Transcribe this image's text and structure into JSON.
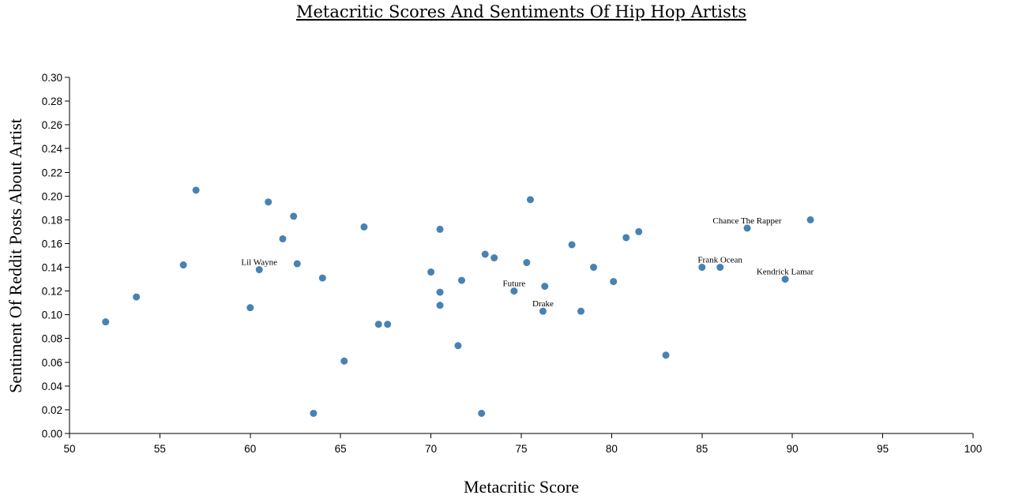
{
  "chart_data": {
    "type": "scatter",
    "title": "Metacritic Scores And Sentiments Of Hip Hop Artists",
    "xlabel": "Metacritic Score",
    "ylabel": "Sentiment Of Reddit Posts About Artist",
    "xlim": [
      50,
      100
    ],
    "ylim": [
      0.0,
      0.3
    ],
    "xticks": [
      "50",
      "55",
      "60",
      "65",
      "70",
      "75",
      "80",
      "85",
      "90",
      "95",
      "100"
    ],
    "yticks": [
      "0.00",
      "0.02",
      "0.04",
      "0.06",
      "0.08",
      "0.10",
      "0.12",
      "0.14",
      "0.16",
      "0.18",
      "0.20",
      "0.22",
      "0.24",
      "0.26",
      "0.28",
      "0.30"
    ],
    "grid": false,
    "point_color": "#4682b4",
    "points": [
      {
        "x": 52.0,
        "y": 0.094
      },
      {
        "x": 53.7,
        "y": 0.115
      },
      {
        "x": 56.3,
        "y": 0.142
      },
      {
        "x": 57.0,
        "y": 0.205
      },
      {
        "x": 60.0,
        "y": 0.106
      },
      {
        "x": 60.5,
        "y": 0.138,
        "label": "Lil Wayne"
      },
      {
        "x": 61.0,
        "y": 0.195
      },
      {
        "x": 61.8,
        "y": 0.164
      },
      {
        "x": 62.4,
        "y": 0.183
      },
      {
        "x": 62.6,
        "y": 0.143
      },
      {
        "x": 63.5,
        "y": 0.017
      },
      {
        "x": 64.0,
        "y": 0.131
      },
      {
        "x": 65.2,
        "y": 0.061
      },
      {
        "x": 66.3,
        "y": 0.174
      },
      {
        "x": 67.1,
        "y": 0.092
      },
      {
        "x": 67.6,
        "y": 0.092
      },
      {
        "x": 70.0,
        "y": 0.136
      },
      {
        "x": 70.5,
        "y": 0.172
      },
      {
        "x": 70.5,
        "y": 0.119
      },
      {
        "x": 70.5,
        "y": 0.108
      },
      {
        "x": 71.5,
        "y": 0.074
      },
      {
        "x": 71.7,
        "y": 0.129
      },
      {
        "x": 72.8,
        "y": 0.017
      },
      {
        "x": 73.0,
        "y": 0.151
      },
      {
        "x": 73.5,
        "y": 0.148
      },
      {
        "x": 74.6,
        "y": 0.12,
        "label": "Future"
      },
      {
        "x": 75.3,
        "y": 0.144
      },
      {
        "x": 75.5,
        "y": 0.197
      },
      {
        "x": 76.2,
        "y": 0.103,
        "label": "Drake"
      },
      {
        "x": 76.3,
        "y": 0.124
      },
      {
        "x": 77.8,
        "y": 0.159
      },
      {
        "x": 78.3,
        "y": 0.103
      },
      {
        "x": 79.0,
        "y": 0.14
      },
      {
        "x": 80.1,
        "y": 0.128
      },
      {
        "x": 80.8,
        "y": 0.165
      },
      {
        "x": 81.5,
        "y": 0.17
      },
      {
        "x": 83.0,
        "y": 0.066
      },
      {
        "x": 85.0,
        "y": 0.14
      },
      {
        "x": 86.0,
        "y": 0.14,
        "label": "Frank Ocean"
      },
      {
        "x": 87.5,
        "y": 0.173,
        "label": "Chance The Rapper"
      },
      {
        "x": 89.6,
        "y": 0.13,
        "label": "Kendrick Lamar"
      },
      {
        "x": 91.0,
        "y": 0.18
      }
    ]
  }
}
